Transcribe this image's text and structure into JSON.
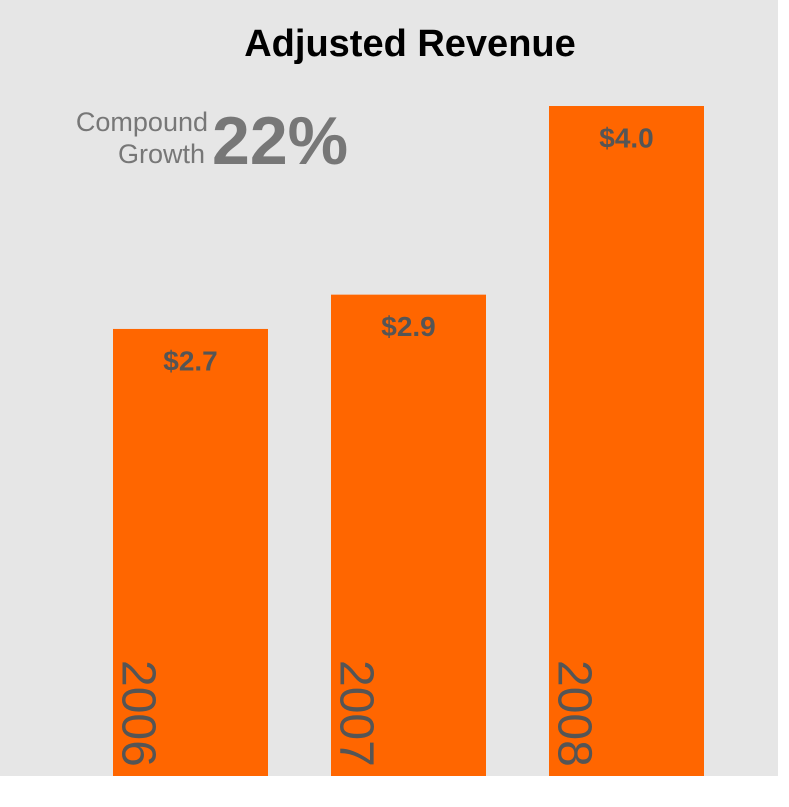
{
  "chart_data": {
    "type": "bar",
    "title": "Adjusted Revenue",
    "categories": [
      "2006",
      "2007",
      "2008"
    ],
    "values": [
      2.7,
      2.9,
      4.0
    ],
    "value_labels": [
      "$2.7",
      "$2.9",
      "$4.0"
    ],
    "color": "#ff6600",
    "annotation": {
      "lines": [
        "Compound",
        "Growth"
      ],
      "value": "22%"
    }
  }
}
